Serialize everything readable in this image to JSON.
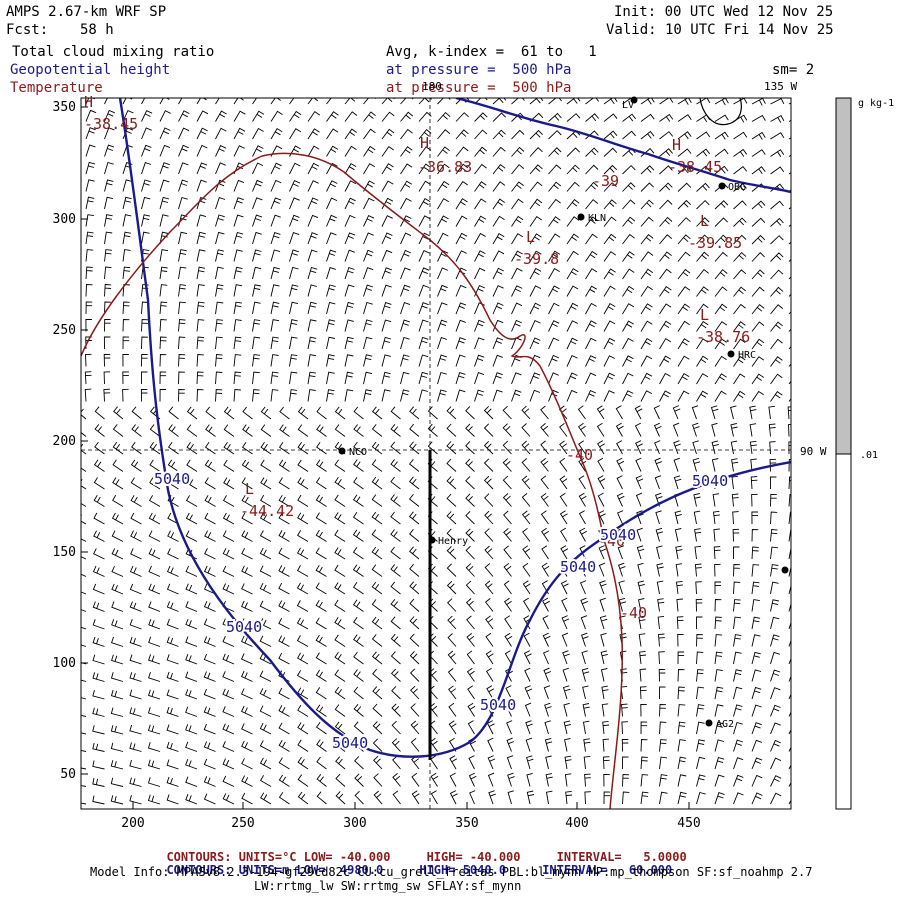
{
  "header": {
    "model": "AMPS 2.67-km WRF SP",
    "fcst_label": "Fcst:",
    "fcst_value": "58 h",
    "init": "Init: 00 UTC Wed 12 Nov 25",
    "valid": "Valid: 10 UTC Fri 14 Nov 25",
    "field1": "Total cloud mixing ratio",
    "field2": "Geopotential height",
    "field3": "Temperature",
    "avg": "Avg, k-index =  61 to   1",
    "pressure1": "at pressure =  500 hPa",
    "pressure2": "at pressure =  500 hPa",
    "sm": "sm= 2",
    "colors": {
      "geopotential": "#1a1a8c",
      "temperature": "#8c1a1a",
      "field": "#000000"
    }
  },
  "map": {
    "x_ticks": [
      "200",
      "250",
      "300",
      "350",
      "400",
      "450"
    ],
    "y_ticks": [
      "350",
      "300",
      "250",
      "200",
      "150",
      "100",
      "50"
    ],
    "meridian_labels": {
      "lon180": "180",
      "lon135": "135 W",
      "lon90": "90 W"
    },
    "stations": [
      {
        "name": "LV",
        "label_side": "left"
      },
      {
        "name": "OBG",
        "label_side": "right"
      },
      {
        "name": "KLN",
        "label_side": "right"
      },
      {
        "name": "HRC",
        "label_side": "right"
      },
      {
        "name": "NCO",
        "label_side": "right"
      },
      {
        "name": "Henry",
        "label_side": "right"
      },
      {
        "name": "AG2",
        "label_side": "right"
      }
    ],
    "temperature_labels": [
      {
        "kind": "H",
        "value": "-38.45"
      },
      {
        "kind": "H",
        "value": "-36.83"
      },
      {
        "kind": "H",
        "value": "-38.45"
      },
      {
        "kind": "",
        "value": "-39"
      },
      {
        "kind": "L",
        "value": "-39.85"
      },
      {
        "kind": "L",
        "value": "-39.8"
      },
      {
        "kind": "L",
        "value": "-38.76"
      },
      {
        "kind": "L",
        "value": "-44.42"
      },
      {
        "kind": "",
        "value": "-40"
      },
      {
        "kind": "",
        "value": "-40"
      },
      {
        "kind": "",
        "value": "-40"
      }
    ],
    "height_labels": [
      "5040",
      "5040",
      "5040",
      "5040",
      "5040",
      "5040"
    ]
  },
  "colorbar": {
    "units": "g kg-1",
    "top_value_label": ".01",
    "fill_color": "#c0c0c0"
  },
  "footer": {
    "row1": {
      "contours": "CONTOURS:",
      "units": "UNITS=°C",
      "low": "LOW= -40.000",
      "high": "HIGH= -40.000",
      "interval": "INTERVAL=",
      "interval_val": "5.0000"
    },
    "row2": {
      "contours": "CONTOURS:",
      "units": "UNITS=m",
      "low": "LOW=  4980.0",
      "high": "HIGH= 5040.0",
      "interval": "INTERVAL=",
      "interval_val": "60.000"
    },
    "model_info": "Model Info: MPASv8.2.3-194-gf29cd82c CU:cu_grell_freitas PBL:bl_mynn MP:mp_thompson SF:sf_noahmp 2.7",
    "model_info2": "LW:rrtmg_lw SW:rrtmg_sw SFLAY:sf_mynn"
  }
}
